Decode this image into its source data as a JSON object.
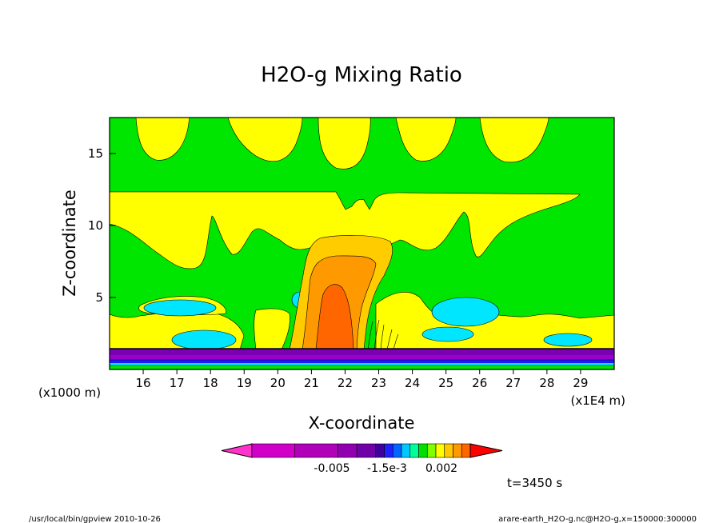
{
  "chart_data": {
    "type": "heatmap",
    "title": "H2O-g Mixing Ratio",
    "xlabel": "X-coordinate",
    "ylabel": "Z-coordinate",
    "x_units_left": "(x1000 m)",
    "x_units_right": "(x1E4 m)",
    "x_ticks": [
      "16",
      "17",
      "18",
      "19",
      "20",
      "21",
      "22",
      "23",
      "24",
      "25",
      "26",
      "27",
      "28",
      "29"
    ],
    "y_ticks": [
      "5",
      "10",
      "15"
    ],
    "xlim": [
      15.0,
      30.0
    ],
    "ylim": [
      0,
      17.5
    ],
    "colorbar_labels": [
      "-0.005",
      "-1.5e-3",
      "0.002"
    ],
    "colorbar_colors": [
      "#ff33cc",
      "#d000c8",
      "#b000b8",
      "#9000b0",
      "#7000a8",
      "#4000a0",
      "#2020ff",
      "#0066ff",
      "#00c8ff",
      "#00ff99",
      "#00e000",
      "#80ff00",
      "#ffff00",
      "#ffc800",
      "#ff9900",
      "#ff6600",
      "#ff0000"
    ]
  },
  "time_label": "t=3450 s",
  "footer_left": "/usr/local/bin/gpview  2010-10-26",
  "footer_right": "arare-earth_H2O-g.nc@H2O-g,x=150000:300000",
  "palette": {
    "green": "#00e600",
    "yellow": "#ffff00",
    "cyan": "#00e6ff",
    "light_orange": "#ffcc00",
    "orange": "#ff9900",
    "dark_orange": "#ff6600",
    "purple": "#7a00b4",
    "violet": "#9c00c8",
    "blue": "#1a1aff"
  }
}
